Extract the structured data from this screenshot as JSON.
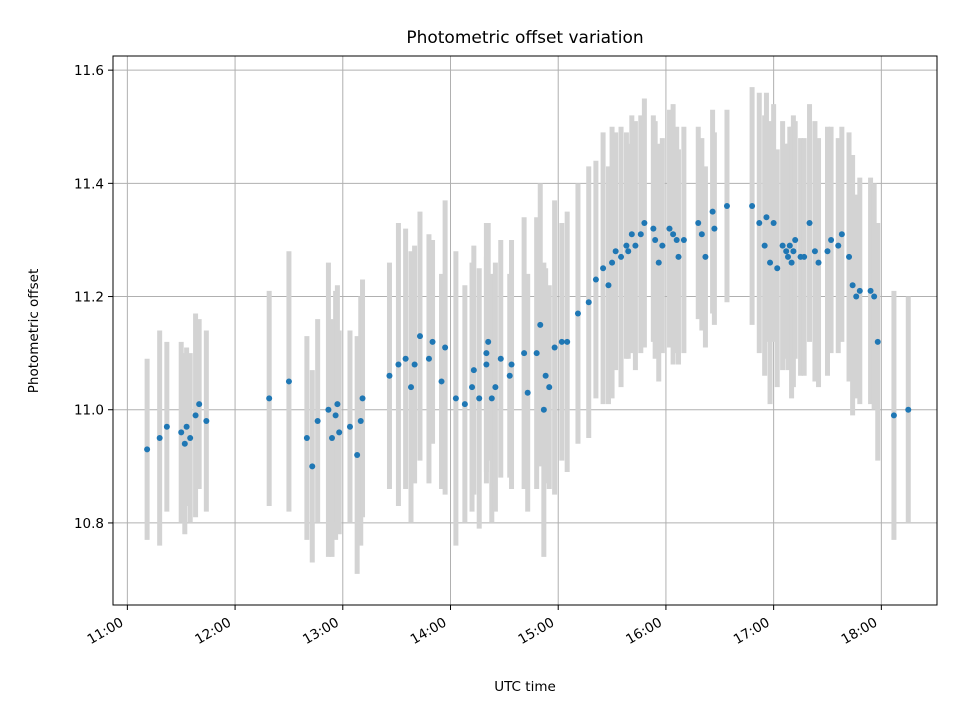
{
  "chart_data": {
    "type": "scatter",
    "title": "Photometric offset variation",
    "xlabel": "UTC time",
    "ylabel": "Photometric offset",
    "x_ticks": [
      "11:00",
      "12:00",
      "13:00",
      "14:00",
      "15:00",
      "16:00",
      "17:00",
      "18:00"
    ],
    "y_ticks": [
      "10.8",
      "11.0",
      "11.2",
      "11.4",
      "11.6"
    ],
    "xlim": [
      "10:52",
      "18:31"
    ],
    "ylim": [
      10.655,
      11.625
    ],
    "grid": true,
    "marker_color": "#1f77b4",
    "errorbar_color": "#d3d3d3",
    "series": [
      {
        "x": [
          "11:11",
          "11:18",
          "11:22",
          "11:30",
          "11:32",
          "11:33",
          "11:35",
          "11:38",
          "11:40",
          "11:44",
          "12:19",
          "12:30",
          "12:40",
          "12:43",
          "12:46",
          "12:52",
          "12:54",
          "12:56",
          "12:57",
          "12:58",
          "13:04",
          "13:08",
          "13:10",
          "13:11",
          "13:26",
          "13:31",
          "13:35",
          "13:38",
          "13:40",
          "13:43",
          "13:48",
          "13:50",
          "13:55",
          "13:57",
          "14:03",
          "14:08",
          "14:12",
          "14:13",
          "14:16",
          "14:20",
          "14:20",
          "14:21",
          "14:23",
          "14:25",
          "14:28",
          "14:33",
          "14:34",
          "14:41",
          "14:43",
          "14:48",
          "14:50",
          "14:52",
          "14:53",
          "14:55",
          "14:58",
          "15:02",
          "15:05",
          "15:11",
          "15:17",
          "15:21",
          "15:25",
          "15:28",
          "15:30",
          "15:32",
          "15:35",
          "15:38",
          "15:39",
          "15:41",
          "15:43",
          "15:46",
          "15:48",
          "15:53",
          "15:54",
          "15:56",
          "15:58",
          "16:02",
          "16:04",
          "16:06",
          "16:07",
          "16:10",
          "16:18",
          "16:20",
          "16:22",
          "16:26",
          "16:27",
          "16:34",
          "16:48",
          "16:52",
          "16:55",
          "16:56",
          "16:58",
          "17:00",
          "17:02",
          "17:05",
          "17:07",
          "17:08",
          "17:09",
          "17:10",
          "17:11",
          "17:12",
          "17:15",
          "17:17",
          "17:20",
          "17:23",
          "17:25",
          "17:30",
          "17:32",
          "17:36",
          "17:38",
          "17:42",
          "17:44",
          "17:46",
          "17:48",
          "17:54",
          "17:56",
          "17:58",
          "18:07",
          "18:15"
        ],
        "y": [
          10.93,
          10.95,
          10.97,
          10.96,
          10.94,
          10.97,
          10.95,
          10.99,
          11.01,
          10.98,
          11.02,
          11.05,
          10.95,
          10.9,
          10.98,
          11.0,
          10.95,
          10.99,
          11.01,
          10.96,
          10.97,
          10.92,
          10.98,
          11.02,
          11.06,
          11.08,
          11.09,
          11.04,
          11.08,
          11.13,
          11.09,
          11.12,
          11.05,
          11.11,
          11.02,
          11.01,
          11.04,
          11.07,
          11.02,
          11.08,
          11.1,
          11.12,
          11.02,
          11.04,
          11.09,
          11.06,
          11.08,
          11.1,
          11.03,
          11.1,
          11.15,
          11.0,
          11.06,
          11.04,
          11.11,
          11.12,
          11.12,
          11.17,
          11.19,
          11.23,
          11.25,
          11.22,
          11.26,
          11.28,
          11.27,
          11.29,
          11.28,
          11.31,
          11.29,
          11.31,
          11.33,
          11.32,
          11.3,
          11.26,
          11.29,
          11.32,
          11.31,
          11.3,
          11.27,
          11.3,
          11.33,
          11.31,
          11.27,
          11.35,
          11.32,
          11.36,
          11.36,
          11.33,
          11.29,
          11.34,
          11.26,
          11.33,
          11.25,
          11.29,
          11.28,
          11.27,
          11.29,
          11.26,
          11.28,
          11.3,
          11.27,
          11.27,
          11.33,
          11.28,
          11.26,
          11.28,
          11.3,
          11.29,
          11.31,
          11.27,
          11.22,
          11.2,
          11.21,
          11.21,
          11.2,
          11.12,
          10.99,
          11.0
        ],
        "err": [
          0.16,
          0.19,
          0.15,
          0.16,
          0.16,
          0.14,
          0.15,
          0.18,
          0.15,
          0.16,
          0.19,
          0.23,
          0.18,
          0.17,
          0.18,
          0.26,
          0.21,
          0.22,
          0.21,
          0.18,
          0.17,
          0.21,
          0.22,
          0.21,
          0.2,
          0.25,
          0.23,
          0.24,
          0.21,
          0.22,
          0.22,
          0.18,
          0.19,
          0.26,
          0.26,
          0.21,
          0.22,
          0.22,
          0.23,
          0.19,
          0.23,
          0.21,
          0.22,
          0.22,
          0.21,
          0.18,
          0.22,
          0.24,
          0.21,
          0.24,
          0.25,
          0.26,
          0.19,
          0.18,
          0.26,
          0.21,
          0.23,
          0.23,
          0.24,
          0.21,
          0.24,
          0.21,
          0.24,
          0.21,
          0.23,
          0.2,
          0.19,
          0.21,
          0.22,
          0.21,
          0.22,
          0.2,
          0.21,
          0.21,
          0.19,
          0.21,
          0.23,
          0.2,
          0.19,
          0.2,
          0.17,
          0.17,
          0.16,
          0.18,
          0.17,
          0.17,
          0.21,
          0.23,
          0.23,
          0.22,
          0.25,
          0.21,
          0.21,
          0.22,
          0.19,
          0.2,
          0.21,
          0.24,
          0.24,
          0.21,
          0.21,
          0.21,
          0.21,
          0.23,
          0.22,
          0.22,
          0.2,
          0.19,
          0.19,
          0.22,
          0.23,
          0.18,
          0.2,
          0.2,
          0.2,
          0.21,
          0.22,
          0.2
        ]
      }
    ]
  }
}
